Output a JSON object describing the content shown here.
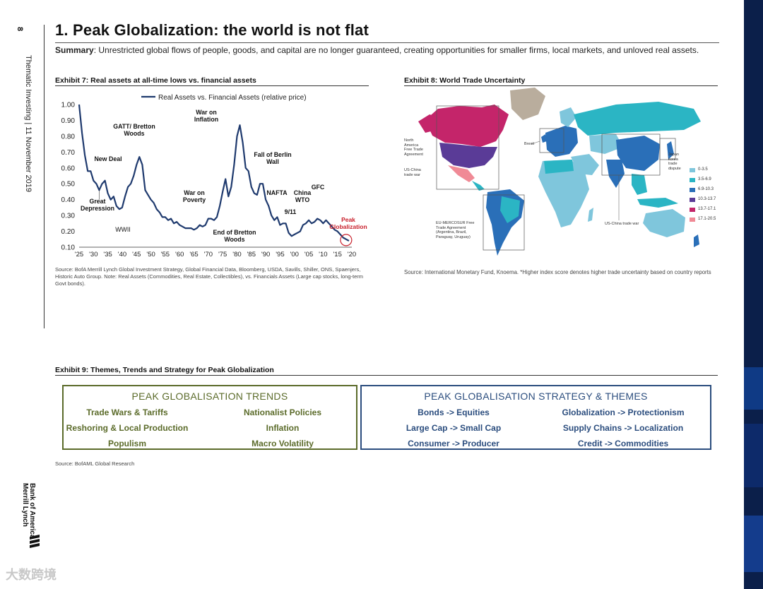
{
  "page_number": "8",
  "side_text": "Thematic Investing | 11 November 2019",
  "brand": {
    "line1": "Bank of America",
    "line2": "Merrill Lynch",
    "logo_icon": "flag-icon"
  },
  "title": "1. Peak Globalization: the world is not flat",
  "summary": {
    "label": "Summary",
    "text": ": Unrestricted global flows of people, goods, and capital are no longer guaranteed, creating opportunities for smaller firms, local markets, and unloved real assets."
  },
  "exhibit7": {
    "title": "Exhibit 7: Real assets at all-time lows vs. financial assets",
    "source": "Source: BofA Merrill Lynch Global Investment Strategy, Global Financial Data, Bloomberg, USDA, Savills, Shiller, ONS, Spaenjers, Historic Auto Group. Note: Real Assets (Commodities, Real Estate, Collectibles), vs. Financials Assets (Large cap stocks, long-term Govt bonds)."
  },
  "chart_data": {
    "type": "line",
    "title": "",
    "legend": "Real Assets vs. Financial Assets (relative price)",
    "legend_position": "top",
    "xlabel": "",
    "ylabel": "",
    "xlim": [
      1925,
      2020
    ],
    "ylim": [
      0.1,
      1.0
    ],
    "y_ticks": [
      "1.00",
      "0.90",
      "0.80",
      "0.70",
      "0.60",
      "0.50",
      "0.40",
      "0.30",
      "0.20",
      "0.10"
    ],
    "x_ticks": [
      "'25",
      "'30",
      "'35",
      "'40",
      "'45",
      "'50",
      "'55",
      "'60",
      "'65",
      "'70",
      "'75",
      "'80",
      "'85",
      "'90",
      "'95",
      "'00",
      "'05",
      "'10",
      "'15",
      "'20"
    ],
    "series": [
      {
        "name": "Real Assets vs. Financial Assets (relative price)",
        "x": [
          1925,
          1926,
          1927,
          1928,
          1929,
          1930,
          1931,
          1932,
          1933,
          1934,
          1935,
          1936,
          1937,
          1938,
          1939,
          1940,
          1941,
          1942,
          1943,
          1944,
          1945,
          1946,
          1947,
          1948,
          1949,
          1950,
          1951,
          1952,
          1953,
          1954,
          1955,
          1956,
          1957,
          1958,
          1959,
          1960,
          1961,
          1962,
          1963,
          1964,
          1965,
          1966,
          1967,
          1968,
          1969,
          1970,
          1971,
          1972,
          1973,
          1974,
          1975,
          1976,
          1977,
          1978,
          1979,
          1980,
          1981,
          1982,
          1983,
          1984,
          1985,
          1986,
          1987,
          1988,
          1989,
          1990,
          1991,
          1992,
          1993,
          1994,
          1995,
          1996,
          1997,
          1998,
          1999,
          2000,
          2001,
          2002,
          2003,
          2004,
          2005,
          2006,
          2007,
          2008,
          2009,
          2010,
          2011,
          2012,
          2013,
          2014,
          2015,
          2016,
          2017,
          2018,
          2019
        ],
        "y": [
          1.0,
          0.82,
          0.68,
          0.58,
          0.58,
          0.52,
          0.5,
          0.46,
          0.5,
          0.52,
          0.44,
          0.4,
          0.42,
          0.36,
          0.34,
          0.35,
          0.42,
          0.48,
          0.5,
          0.55,
          0.62,
          0.67,
          0.62,
          0.46,
          0.43,
          0.4,
          0.38,
          0.34,
          0.32,
          0.29,
          0.29,
          0.27,
          0.28,
          0.25,
          0.26,
          0.24,
          0.23,
          0.22,
          0.22,
          0.22,
          0.21,
          0.22,
          0.24,
          0.23,
          0.24,
          0.28,
          0.28,
          0.27,
          0.29,
          0.36,
          0.45,
          0.53,
          0.42,
          0.48,
          0.62,
          0.8,
          0.87,
          0.76,
          0.6,
          0.58,
          0.48,
          0.44,
          0.43,
          0.5,
          0.5,
          0.4,
          0.36,
          0.3,
          0.27,
          0.29,
          0.24,
          0.25,
          0.25,
          0.19,
          0.17,
          0.18,
          0.19,
          0.2,
          0.24,
          0.25,
          0.27,
          0.25,
          0.26,
          0.28,
          0.27,
          0.25,
          0.27,
          0.25,
          0.23,
          0.21,
          0.2,
          0.18,
          0.16,
          0.15,
          0.14
        ]
      }
    ],
    "annotations": [
      {
        "text": "Great Depression",
        "x": 1933,
        "y": 0.44
      },
      {
        "text": "New Deal",
        "x": 1935,
        "y": 0.53
      },
      {
        "text": "GATT/ Bretton Woods",
        "x": 1947,
        "y": 0.69
      },
      {
        "text": "WWII",
        "x": 1942,
        "y": 0.3
      },
      {
        "text": "War on Poverty",
        "x": 1966,
        "y": 0.33
      },
      {
        "text": "War on Inflation",
        "x": 1980,
        "y": 0.88
      },
      {
        "text": "End of Bretton Woods",
        "x": 1971,
        "y": 0.27
      },
      {
        "text": "Fall of Berlin Wall",
        "x": 1989,
        "y": 0.52
      },
      {
        "text": "NAFTA",
        "x": 1994,
        "y": 0.38
      },
      {
        "text": "9/11",
        "x": 2001,
        "y": 0.19
      },
      {
        "text": "China WTO",
        "x": 2001,
        "y": 0.2
      },
      {
        "text": "GFC",
        "x": 2008,
        "y": 0.28
      },
      {
        "text": "Peak Globalization",
        "x": 2019,
        "y": 0.14
      }
    ]
  },
  "exhibit8": {
    "title": "Exhibit 8: World Trade Uncertainty",
    "source": "Source: International Monetary Fund, Knoema. *Higher index score denotes higher trade uncertainty based on country reports",
    "labels": {
      "nafta": [
        "North",
        "America",
        "Free Trade",
        "Agreement"
      ],
      "uschina": [
        "US-China",
        "trade war"
      ],
      "brexit": "Brexit",
      "japan": [
        "Japan",
        "korea",
        "trade",
        "dispute"
      ],
      "mercosur": [
        "EU-MERCOSUR Free",
        "Trade Agreement",
        "(Argentina, Brazil,",
        "Paraguay, Uruguay)"
      ],
      "uschina2": "US-China trade war"
    },
    "legend": [
      {
        "label": "0-3.5",
        "color": "#7fc6dc"
      },
      {
        "label": "3.5-6.9",
        "color": "#2bb5c4"
      },
      {
        "label": "6.9-10.3",
        "color": "#2a6fb8"
      },
      {
        "label": "10.3-13.7",
        "color": "#5a3b97"
      },
      {
        "label": "13.7-17.1",
        "color": "#c4256a"
      },
      {
        "label": "17.1-20.5",
        "color": "#f08a96"
      }
    ]
  },
  "exhibit9": {
    "title": "Exhibit 9: Themes, Trends and Strategy for Peak Globalization",
    "trends": {
      "heading": "PEAK GLOBALISATION TRENDS",
      "items": [
        "Trade Wars & Tariffs",
        "Nationalist Policies",
        "Reshoring & Local Production",
        "Inflation",
        "Populism",
        "Macro Volatility"
      ],
      "color": "#5b6b2a"
    },
    "strategy": {
      "heading": "PEAK GLOBALISATION STRATEGY & THEMES",
      "items": [
        "Bonds -> Equities",
        "Globalization -> Protectionism",
        "Large Cap -> Small Cap",
        "Supply Chains -> Localization",
        "Consumer -> Producer",
        "Credit -> Commodities"
      ],
      "color": "#2b4d7e"
    },
    "source": "Source: BofAML Global Research"
  },
  "watermark": "大数跨境",
  "colors": {
    "line": "#1f3a6e",
    "peak": "#c81e2a"
  }
}
